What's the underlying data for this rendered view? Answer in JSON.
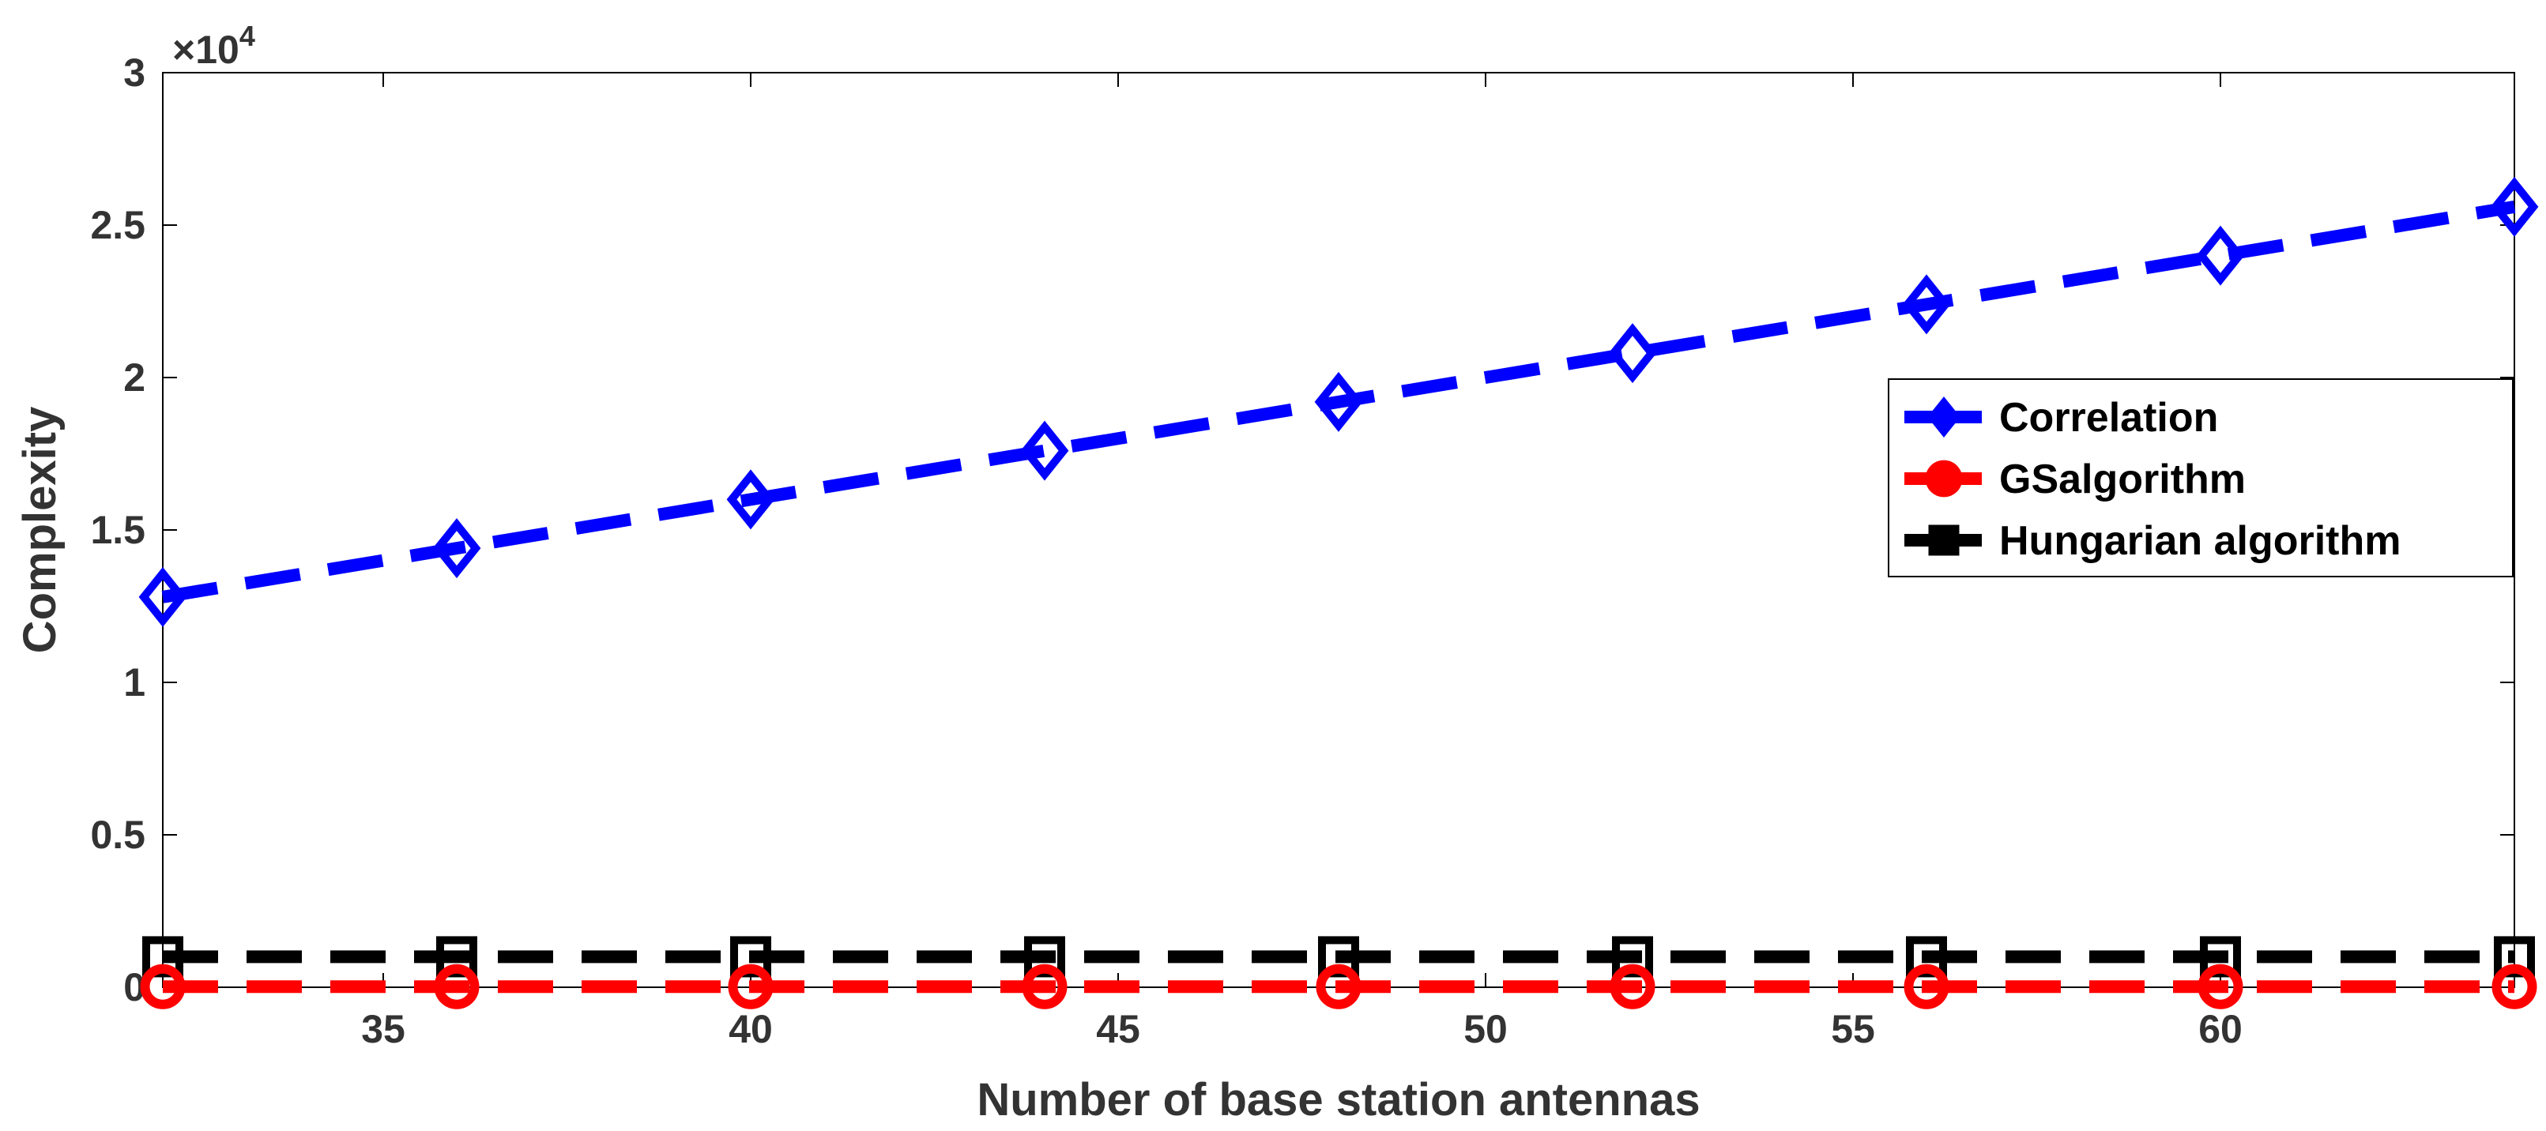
{
  "chart_data": {
    "type": "line",
    "title": "",
    "xlabel": "Number of base station antennas",
    "ylabel": "Complexity",
    "y_multiplier": {
      "base": "×10",
      "exponent": "4"
    },
    "xlim": [
      32,
      64
    ],
    "ylim": [
      0,
      3
    ],
    "x_ticks": [
      35,
      40,
      45,
      50,
      55,
      60
    ],
    "y_ticks": [
      0,
      0.5,
      1,
      1.5,
      2,
      2.5,
      3
    ],
    "x_tick_labels": [
      "35",
      "40",
      "45",
      "50",
      "55",
      "60"
    ],
    "y_tick_labels": [
      "0",
      "0.5",
      "1",
      "1.5",
      "2",
      "2.5",
      "3"
    ],
    "x": [
      32,
      36,
      40,
      44,
      48,
      52,
      56,
      60,
      64
    ],
    "series": [
      {
        "name": "Correlation",
        "color": "#0000ff",
        "marker": "diamond",
        "values": [
          1.28,
          1.44,
          1.6,
          1.76,
          1.92,
          2.08,
          2.24,
          2.4,
          2.56
        ]
      },
      {
        "name": "GSalgorithm",
        "color": "#ff0000",
        "marker": "circle",
        "values": [
          0.002,
          0.002,
          0.002,
          0.002,
          0.002,
          0.002,
          0.002,
          0.002,
          0.002
        ]
      },
      {
        "name": "Hungarian algorithm",
        "color": "#000000",
        "marker": "square",
        "values": [
          0.1,
          0.1,
          0.1,
          0.1,
          0.1,
          0.1,
          0.1,
          0.1,
          0.1
        ]
      }
    ],
    "grid": false,
    "legend_position": "right"
  }
}
